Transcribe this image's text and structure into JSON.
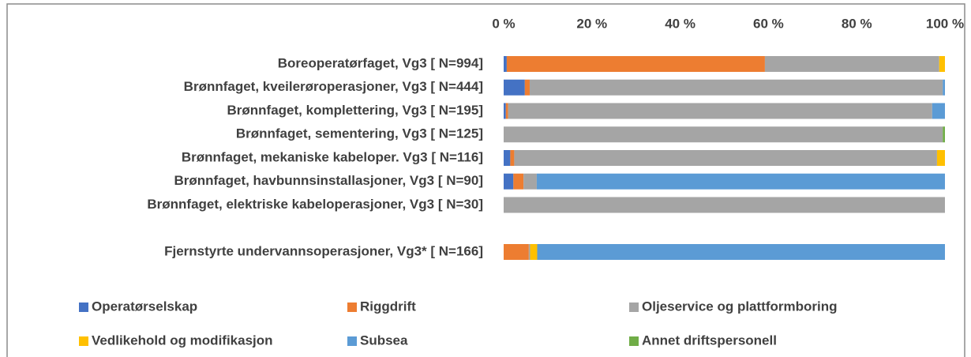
{
  "chart_data": {
    "type": "stacked_hbar",
    "categories": [
      "Boreoperatørfaget, Vg3 [ N=994]",
      "Brønnfaget, kveilerøroperasjoner, Vg3 [ N=444]",
      "Brønnfaget, komplettering, Vg3 [ N=195]",
      "Brønnfaget, sementering, Vg3 [ N=125]",
      "Brønnfaget, mekaniske kabeloper. Vg3 [ N=116]",
      "Brønnfaget, havbunnsinstallasjoner, Vg3 [ N=90]",
      "Brønnfaget, elektriske kabeloperasjoner, Vg3 [ N=30]",
      null,
      "Fjernstyrte undervannsoperasjoner, Vg3* [ N=166]"
    ],
    "series": [
      {
        "name": "Operatørselskap",
        "color": "#4472c4",
        "values": [
          0.7,
          4.8,
          0.5,
          0,
          1.5,
          2.2,
          0,
          null,
          0
        ]
      },
      {
        "name": "Riggdrift",
        "color": "#ed7d31",
        "values": [
          58.5,
          1.1,
          0.5,
          0,
          0.9,
          2.3,
          0,
          null,
          5.7
        ]
      },
      {
        "name": "Oljeservice og plattformboring",
        "color": "#a5a5a5",
        "values": [
          39.5,
          93.6,
          96.1,
          99.5,
          95.8,
          3.0,
          100,
          null,
          0.3
        ]
      },
      {
        "name": "Vedlikehold og modifikasjon",
        "color": "#ffc000",
        "values": [
          1.3,
          0,
          0,
          0,
          1.8,
          0,
          0,
          null,
          1.6
        ]
      },
      {
        "name": "Subsea",
        "color": "#5b9bd5",
        "values": [
          0,
          0.5,
          2.9,
          0,
          0,
          92.5,
          0,
          null,
          92.4
        ]
      },
      {
        "name": "Annet driftspersonell",
        "color": "#70ad47",
        "values": [
          0,
          0,
          0,
          0.5,
          0,
          0,
          0,
          null,
          0
        ]
      }
    ],
    "xlim": [
      0,
      100
    ],
    "xticks": [
      {
        "value": 0,
        "label": "0 %"
      },
      {
        "value": 20,
        "label": "20 %"
      },
      {
        "value": 40,
        "label": "40 %"
      },
      {
        "value": 60,
        "label": "60 %"
      },
      {
        "value": 80,
        "label": "80 %"
      },
      {
        "value": 100,
        "label": "100 %"
      }
    ],
    "grid": false,
    "legend": "bottom"
  }
}
